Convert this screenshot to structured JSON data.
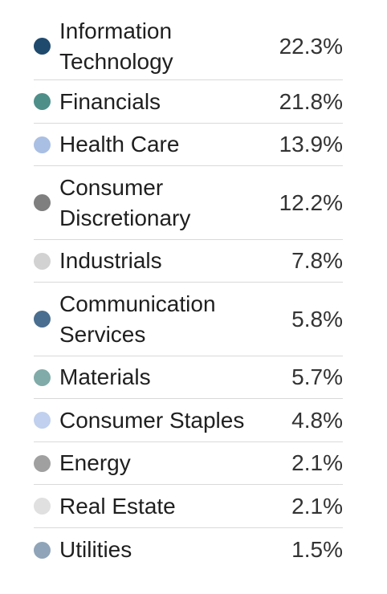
{
  "chart_data": {
    "type": "table",
    "title": "",
    "rows": [
      {
        "label": "Information\nTechnology",
        "value": "22.3%",
        "numeric": 22.3,
        "color": "#1f4a6e"
      },
      {
        "label": "Financials",
        "value": "21.8%",
        "numeric": 21.8,
        "color": "#4f8f8a"
      },
      {
        "label": "Health Care",
        "value": "13.9%",
        "numeric": 13.9,
        "color": "#a9bfe3"
      },
      {
        "label": "Consumer\nDiscretionary",
        "value": "12.2%",
        "numeric": 12.2,
        "color": "#7f7f7f"
      },
      {
        "label": "Industrials",
        "value": "7.8%",
        "numeric": 7.8,
        "color": "#d2d2d2"
      },
      {
        "label": "Communication\nServices",
        "value": "5.8%",
        "numeric": 5.8,
        "color": "#4a6e8f"
      },
      {
        "label": "Materials",
        "value": "5.7%",
        "numeric": 5.7,
        "color": "#80aba8"
      },
      {
        "label": "Consumer Staples",
        "value": "4.8%",
        "numeric": 4.8,
        "color": "#c0d0ee"
      },
      {
        "label": "Energy",
        "value": "2.1%",
        "numeric": 2.1,
        "color": "#a0a0a0"
      },
      {
        "label": "Real Estate",
        "value": "2.1%",
        "numeric": 2.1,
        "color": "#e0e0e0"
      },
      {
        "label": "Utilities",
        "value": "1.5%",
        "numeric": 1.5,
        "color": "#8fa4b8"
      }
    ]
  }
}
